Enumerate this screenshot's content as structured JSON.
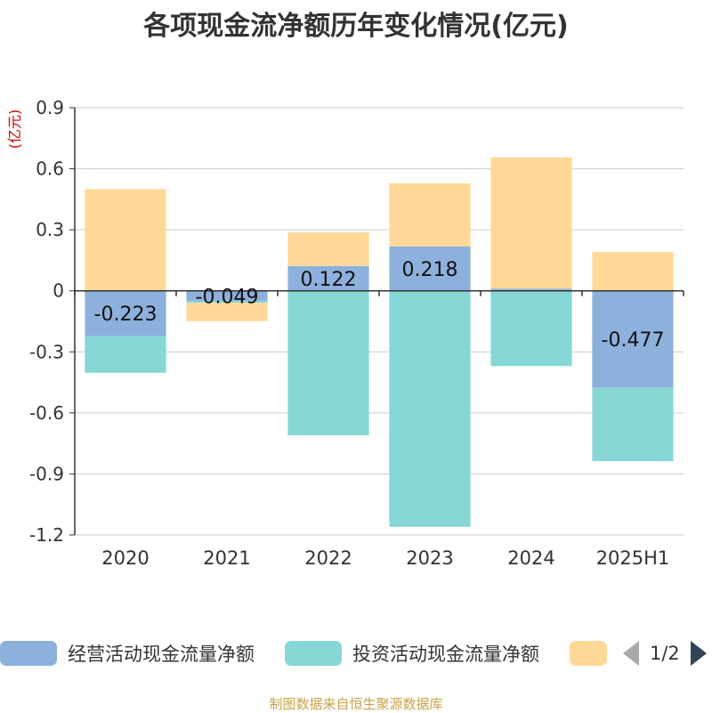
{
  "chart_data": {
    "type": "bar",
    "stacked": true,
    "title": "各项现金流净额历年变化情况(亿元)",
    "ylabel": "(亿元)",
    "categories": [
      "2020",
      "2021",
      "2022",
      "2023",
      "2024",
      "2025H1"
    ],
    "ylim": [
      -1.2,
      0.9
    ],
    "yticks": [
      0.9,
      0.6,
      0.3,
      0,
      -0.3,
      -0.6,
      -0.9,
      -1.2
    ],
    "ytick_labels": [
      "0.9",
      "0.6",
      "0.3",
      "0",
      "-0.3",
      "-0.6",
      "-0.9",
      "-1.2"
    ],
    "grid": true,
    "legend_position": "bottom",
    "series": [
      {
        "name": "经营活动现金流量净额",
        "color": "#8eb0dc",
        "values": [
          -0.223,
          -0.049,
          0.122,
          0.218,
          0.011,
          -0.477
        ],
        "data_labels": [
          "-0.223",
          "-0.049",
          "0.122",
          "0.218",
          "",
          "-0.477"
        ]
      },
      {
        "name": "投资活动现金流量净额",
        "color": "#87d7d7",
        "values": [
          -0.18,
          -0.01,
          -0.71,
          -1.16,
          -0.37,
          -0.36
        ]
      },
      {
        "name": "",
        "color": "#ffd898",
        "values": [
          0.5,
          -0.09,
          0.165,
          0.31,
          0.645,
          0.19
        ]
      }
    ]
  },
  "legend": {
    "page": "1/2"
  },
  "footer": {
    "source": "制图数据来自恒生聚源数据库"
  }
}
